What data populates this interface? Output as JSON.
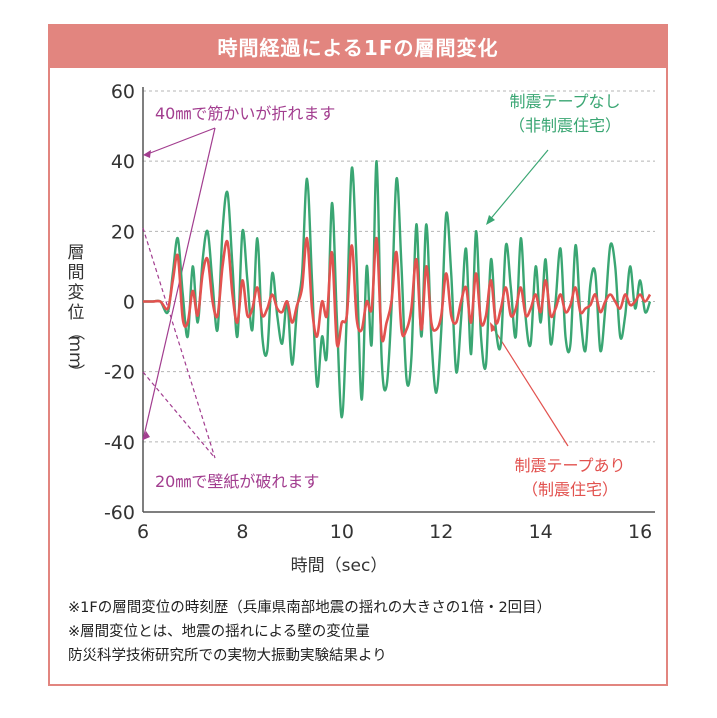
{
  "chart_data": {
    "type": "line",
    "title": "時間経過による1Fの層間変化",
    "xlabel": "時間（sec）",
    "ylabel": [
      "層",
      "間",
      "変",
      "位",
      "（",
      "mm",
      "）"
    ],
    "xlim": [
      6,
      16.3
    ],
    "ylim": [
      -60,
      60
    ],
    "xticks": [
      6,
      8,
      10,
      12,
      14,
      16
    ],
    "yticks": [
      60,
      40,
      20,
      0,
      -20,
      -40,
      -60
    ],
    "grid": "horizontal dashed",
    "series": [
      {
        "name": "制震テープなし（非制震住宅）",
        "color": "#3aa673",
        "x": [
          6.0,
          6.2,
          6.35,
          6.5,
          6.6,
          6.7,
          6.8,
          6.9,
          7.0,
          7.1,
          7.2,
          7.3,
          7.4,
          7.5,
          7.6,
          7.7,
          7.8,
          7.9,
          8.0,
          8.1,
          8.2,
          8.3,
          8.4,
          8.5,
          8.6,
          8.7,
          8.8,
          8.9,
          9.0,
          9.1,
          9.2,
          9.3,
          9.4,
          9.5,
          9.6,
          9.7,
          9.8,
          9.9,
          10.0,
          10.1,
          10.2,
          10.3,
          10.4,
          10.5,
          10.6,
          10.7,
          10.8,
          10.9,
          11.0,
          11.1,
          11.2,
          11.3,
          11.4,
          11.5,
          11.6,
          11.7,
          11.8,
          11.9,
          12.0,
          12.1,
          12.2,
          12.3,
          12.4,
          12.5,
          12.6,
          12.7,
          12.8,
          12.9,
          13.0,
          13.1,
          13.2,
          13.3,
          13.4,
          13.5,
          13.6,
          13.7,
          13.8,
          13.9,
          14.0,
          14.1,
          14.2,
          14.3,
          14.4,
          14.5,
          14.6,
          14.7,
          14.8,
          14.9,
          15.0,
          15.1,
          15.2,
          15.3,
          15.4,
          15.5,
          15.6,
          15.7,
          15.8,
          15.9,
          16.0,
          16.1,
          16.2
        ],
        "y": [
          0,
          0,
          0,
          -3,
          8,
          18,
          2,
          -10,
          10,
          -6,
          12,
          20,
          5,
          -8,
          20,
          31,
          10,
          -10,
          20,
          6,
          -8,
          18,
          -10,
          -14,
          8,
          -4,
          -12,
          0,
          -18,
          -2,
          8,
          35,
          6,
          -24,
          -10,
          -15,
          28,
          -5,
          -33,
          -4,
          38,
          10,
          -28,
          10,
          -12,
          40,
          -16,
          -24,
          -2,
          35,
          10,
          -22,
          -16,
          22,
          -10,
          22,
          -10,
          -26,
          -8,
          25,
          8,
          -20,
          -5,
          15,
          -15,
          20,
          -10,
          -18,
          12,
          -8,
          -12,
          16,
          4,
          -10,
          18,
          -5,
          -12,
          10,
          -6,
          12,
          -12,
          0,
          15,
          -10,
          -12,
          16,
          -4,
          -14,
          5,
          8,
          -14,
          -2,
          16,
          10,
          -10,
          -4,
          10,
          -2,
          6,
          -3,
          0
        ]
      },
      {
        "name": "制震テープあり（制震住宅）",
        "color": "#e2524f",
        "x": [
          6.0,
          6.2,
          6.35,
          6.5,
          6.6,
          6.7,
          6.8,
          6.9,
          7.0,
          7.1,
          7.2,
          7.3,
          7.4,
          7.5,
          7.6,
          7.7,
          7.8,
          7.9,
          8.0,
          8.1,
          8.2,
          8.3,
          8.4,
          8.5,
          8.6,
          8.7,
          8.8,
          8.9,
          9.0,
          9.1,
          9.2,
          9.3,
          9.4,
          9.5,
          9.6,
          9.7,
          9.8,
          9.9,
          10.0,
          10.1,
          10.2,
          10.3,
          10.4,
          10.5,
          10.6,
          10.7,
          10.8,
          10.9,
          11.0,
          11.1,
          11.2,
          11.3,
          11.4,
          11.5,
          11.6,
          11.7,
          11.8,
          11.9,
          12.0,
          12.1,
          12.2,
          12.3,
          12.4,
          12.5,
          12.6,
          12.7,
          12.8,
          12.9,
          13.0,
          13.1,
          13.2,
          13.3,
          13.4,
          13.5,
          13.6,
          13.7,
          13.8,
          13.9,
          14.0,
          14.1,
          14.2,
          14.3,
          14.4,
          14.5,
          14.6,
          14.7,
          14.8,
          14.9,
          15.0,
          15.1,
          15.2,
          15.3,
          15.4,
          15.5,
          15.6,
          15.7,
          15.8,
          15.9,
          16.0,
          16.1,
          16.2
        ],
        "y": [
          0,
          0,
          0,
          -2,
          6,
          13,
          -5,
          -6,
          3,
          -4,
          8,
          12,
          0,
          -4,
          10,
          17,
          2,
          -6,
          6,
          -4,
          -2,
          4,
          -4,
          -2,
          2,
          -2,
          -3,
          0,
          -6,
          -1,
          4,
          18,
          -2,
          -10,
          0,
          -4,
          14,
          -12,
          -6,
          -4,
          16,
          -5,
          -8,
          0,
          -2,
          18,
          -10,
          -6,
          0,
          14,
          -8,
          -8,
          -2,
          12,
          -8,
          10,
          -6,
          -8,
          -4,
          8,
          -4,
          -6,
          0,
          4,
          -6,
          8,
          -6,
          -4,
          6,
          -6,
          -2,
          4,
          -4,
          -2,
          4,
          -4,
          -2,
          2,
          -3,
          6,
          -4,
          -2,
          2,
          -3,
          -1,
          4,
          -3,
          -2,
          -1,
          2,
          -3,
          0,
          2,
          0,
          -2,
          2,
          -1,
          0,
          2,
          0,
          2
        ]
      }
    ],
    "annotations": [
      {
        "text": "40㎜で筋かいが折れます",
        "color": "#a23d8f"
      },
      {
        "text": "20㎜で壁紙が破れます",
        "color": "#a23d8f"
      },
      {
        "text": "制震テープなし",
        "sub": "（非制震住宅）",
        "color": "#3aa673"
      },
      {
        "text": "制震テープあり",
        "sub": "（制震住宅）",
        "color": "#e2524f"
      }
    ]
  },
  "notes": [
    "※1Fの層間変位の時刻歴（兵庫県南部地震の揺れの大きさの1倍・2回目）",
    "※層間変位とは、地震の揺れによる壁の変位量",
    "防災科学技術研究所での実物大振動実験結果より"
  ],
  "colors": {
    "frame": "#e2857f",
    "green": "#3aa673",
    "red": "#e2524f",
    "purple": "#a23d8f"
  }
}
